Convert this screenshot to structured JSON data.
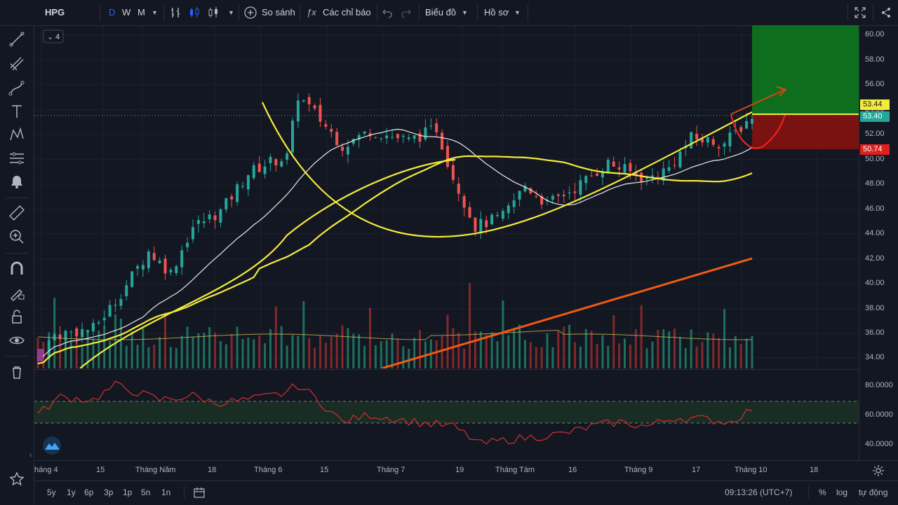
{
  "toolbar": {
    "symbol": "HPG",
    "intervals": [
      "D",
      "W",
      "M"
    ],
    "compare_label": "So sánh",
    "indicators_label": "Các chỉ báo",
    "chart_menu_label": "Biểu đồ",
    "profile_menu_label": "Hồ sơ"
  },
  "legend_badge": "4",
  "price_axis": {
    "labels": [
      "60.00",
      "58.00",
      "56.00",
      "54.00",
      "52.00",
      "50.00",
      "48.00",
      "46.00",
      "44.00",
      "42.00",
      "40.00",
      "38.00",
      "36.00",
      "34.00"
    ],
    "tag_yellow": "53.44",
    "tag_green": "53.40",
    "tag_red": "50.74"
  },
  "osc_axis": {
    "labels": [
      "80.0000",
      "60.0000",
      "40.0000"
    ]
  },
  "time_axis": {
    "labels": [
      "háng 4",
      "15",
      "Tháng Năm",
      "18",
      "Tháng 6",
      "15",
      "Tháng 7",
      "19",
      "Tháng Tám",
      "16",
      "Tháng 9",
      "17",
      "Tháng 10",
      "18"
    ]
  },
  "bottom": {
    "ranges": [
      "5y",
      "1y",
      "6p",
      "3p",
      "1p",
      "5n",
      "1n"
    ],
    "time": "09:13:26 (UTC+7)",
    "percent": "%",
    "log": "log",
    "auto": "tự động"
  },
  "colors": {
    "bg": "#131722",
    "up": "#26a69a",
    "down": "#ef5350",
    "ma_yellow": "#f5eb3b",
    "ma_white": "#ffffff",
    "trend_orange": "#f05a14",
    "target_green": "#0f6e1e",
    "stop_red": "#7a1212"
  },
  "icons": [
    "crosshair-icon",
    "trendline-icon",
    "pitchfork-icon",
    "path-icon",
    "text-icon",
    "pattern-icon",
    "fib-icon",
    "alert-icon",
    "ruler-icon",
    "zoom-icon",
    "magnet-icon",
    "lock-draw-icon",
    "lock-icon",
    "eye-icon",
    "trash-icon",
    "star-icon",
    "fullscreen-icon",
    "share-icon",
    "settings-icon",
    "undo-icon",
    "redo-icon",
    "calendar-icon"
  ]
}
